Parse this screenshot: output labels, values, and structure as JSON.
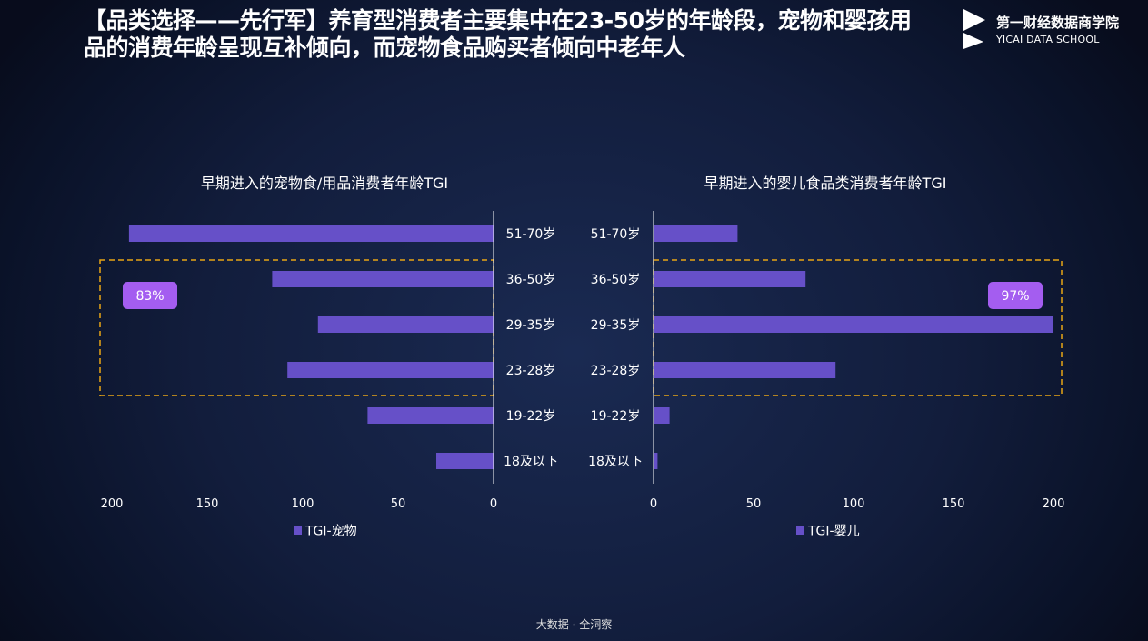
{
  "headline": "【品类选择——先行军】养育型消费者主要集中在23-50岁的年龄段，宠物和婴孩用品的消费年龄呈现互补倾向，而宠物食品购买者倾向中老年人",
  "brand": {
    "name": "第一财经数据商学院",
    "subtitle": "YICAI DATA SCHOOL"
  },
  "footer": "大数据 · 全洞察",
  "colors": {
    "bar": "#6650c8",
    "highlight_box": "#e8a515",
    "callout": "#a45df0"
  },
  "chart_data": [
    {
      "type": "bar",
      "orientation": "horizontal",
      "direction": "reversed",
      "title": "早期进入的宠物食/用品消费者年龄TGI",
      "categories": [
        "51-70岁",
        "36-50岁",
        "29-35岁",
        "23-28岁",
        "19-22岁",
        "18及以下"
      ],
      "series": [
        {
          "name": "TGI-宠物",
          "values": [
            191,
            116,
            92,
            108,
            66,
            30
          ]
        }
      ],
      "xlim": [
        0,
        200
      ],
      "ticks": [
        200,
        150,
        100,
        50,
        0
      ],
      "tick_labels": [
        "200",
        "150",
        "100",
        "50",
        "0"
      ],
      "highlight": {
        "categories": [
          "36-50岁",
          "29-35岁",
          "23-28岁"
        ],
        "label": "83%"
      },
      "legend": {
        "position": "bottom-left"
      },
      "grid": false
    },
    {
      "type": "bar",
      "orientation": "horizontal",
      "direction": "normal",
      "title": "早期进入的婴儿食品类消费者年龄TGI",
      "categories": [
        "51-70岁",
        "36-50岁",
        "29-35岁",
        "23-28岁",
        "19-22岁",
        "18及以下"
      ],
      "series": [
        {
          "name": "TGI-婴儿",
          "values": [
            42,
            76,
            200,
            91,
            8,
            2
          ]
        }
      ],
      "xlim": [
        0,
        200
      ],
      "ticks": [
        0,
        50,
        100,
        150,
        200
      ],
      "tick_labels": [
        "0",
        "50",
        "100",
        "150",
        "200"
      ],
      "highlight": {
        "categories": [
          "36-50岁",
          "29-35岁",
          "23-28岁"
        ],
        "label": "97%"
      },
      "legend": {
        "position": "bottom-left"
      },
      "grid": false
    }
  ]
}
